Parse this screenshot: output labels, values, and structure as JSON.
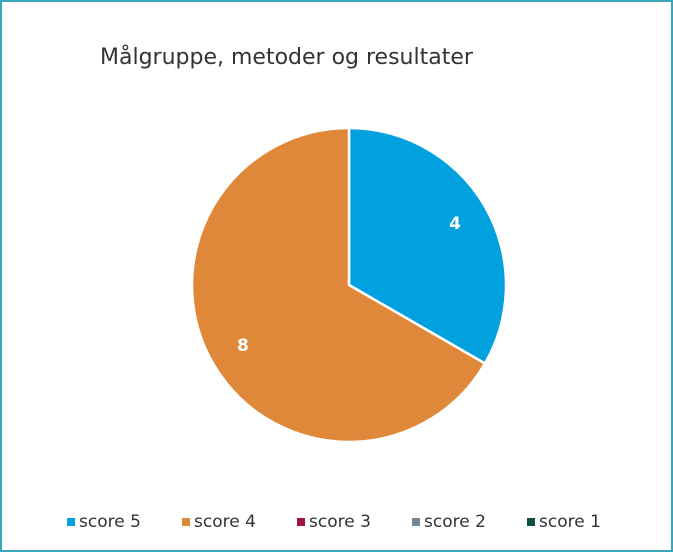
{
  "chart_data": {
    "type": "pie",
    "title": "Målgruppe, metoder og resultater",
    "categories": [
      "score 5",
      "score 4",
      "score 3",
      "score 2",
      "score 1"
    ],
    "values": [
      4,
      8,
      0,
      0,
      0
    ],
    "colors": [
      "#00a1de",
      "#e0883a",
      "#a3163f",
      "#71879b",
      "#0d4f40"
    ],
    "legend": "bottom"
  }
}
